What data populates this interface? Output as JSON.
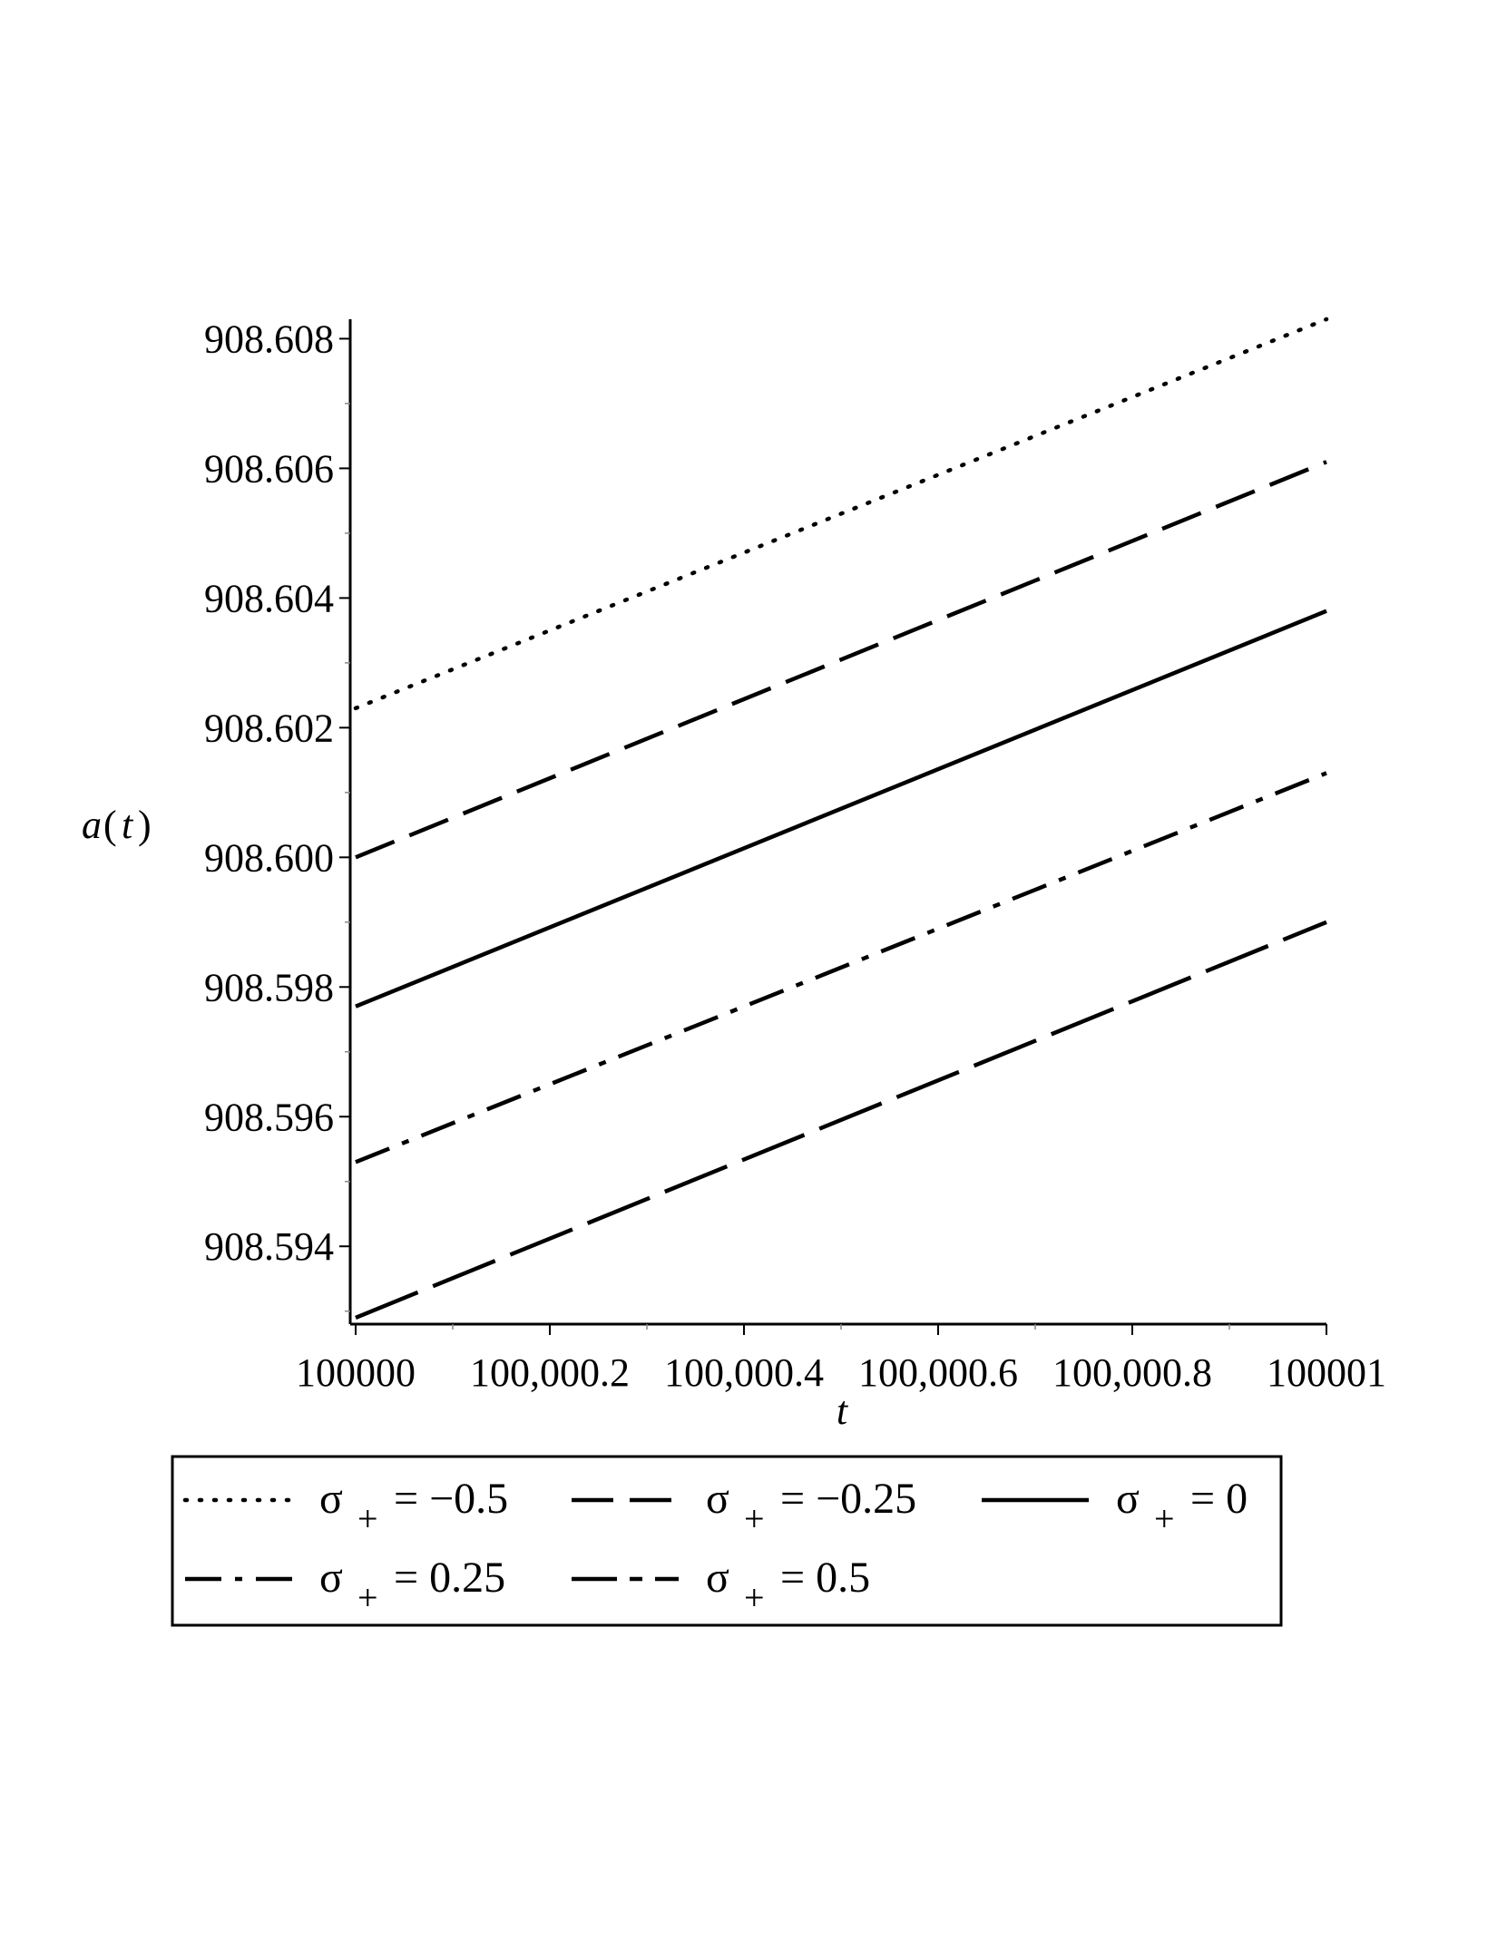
{
  "chart_data": {
    "type": "line",
    "title": "",
    "xlabel": "t",
    "ylabel_main": "a",
    "ylabel_arg": "t",
    "xlim": [
      100000,
      100001
    ],
    "ylim": [
      908.5928,
      908.6083
    ],
    "x_ticks": [
      {
        "value": 100000,
        "label": "100000"
      },
      {
        "value": 100000.2,
        "label": "100,000.2"
      },
      {
        "value": 100000.4,
        "label": "100,000.4"
      },
      {
        "value": 100000.6,
        "label": "100,000.6"
      },
      {
        "value": 100000.8,
        "label": "100,000.8"
      },
      {
        "value": 100001,
        "label": "100001"
      }
    ],
    "x_minor_ticks": [
      100000.1,
      100000.3,
      100000.5,
      100000.7,
      100000.9
    ],
    "y_ticks": [
      {
        "value": 908.594,
        "label": "908.594"
      },
      {
        "value": 908.596,
        "label": "908.596"
      },
      {
        "value": 908.598,
        "label": "908.598"
      },
      {
        "value": 908.6,
        "label": "908.600"
      },
      {
        "value": 908.602,
        "label": "908.602"
      },
      {
        "value": 908.604,
        "label": "908.604"
      },
      {
        "value": 908.606,
        "label": "908.606"
      },
      {
        "value": 908.608,
        "label": "908.608"
      }
    ],
    "y_minor_ticks": [
      908.593,
      908.595,
      908.597,
      908.599,
      908.601,
      908.603,
      908.605,
      908.607
    ],
    "grid": false,
    "legend_position": "bottom",
    "series": [
      {
        "name": "-0.5",
        "legend_text": "= −0.5",
        "style": "dotted",
        "x": [
          100000,
          100001
        ],
        "y": [
          908.6023,
          908.6083
        ]
      },
      {
        "name": "-0.25",
        "legend_text": "= −0.25",
        "style": "dashed",
        "x": [
          100000,
          100001
        ],
        "y": [
          908.6,
          908.6061
        ]
      },
      {
        "name": "0",
        "legend_text": "= 0",
        "style": "solid",
        "x": [
          100000,
          100001
        ],
        "y": [
          908.5977,
          908.6038
        ]
      },
      {
        "name": "0.25",
        "legend_text": "= 0.25",
        "style": "dashdot",
        "x": [
          100000,
          100001
        ],
        "y": [
          908.5953,
          908.6013
        ]
      },
      {
        "name": "0.5",
        "legend_text": "= 0.5",
        "style": "longdash",
        "x": [
          100000,
          100001
        ],
        "y": [
          908.5929,
          908.599
        ]
      }
    ],
    "legend_symbol": "σ",
    "legend_subscript": "+"
  },
  "colors": {
    "line": "#000000",
    "background": "#ffffff"
  }
}
